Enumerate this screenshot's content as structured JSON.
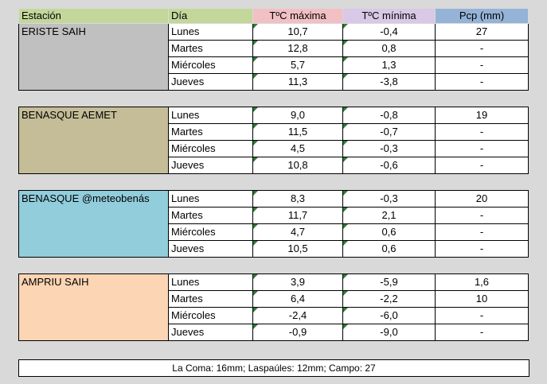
{
  "header": {
    "station": "Estación",
    "day": "Día",
    "tmax": "TºC máxima",
    "tmin": "TºC mínima",
    "pcp": "Pcp (mm)"
  },
  "colors": {
    "station_header": "#c4d79b",
    "day_header": "#c4d79b",
    "tmax_header": "#f2c0c4",
    "tmin_header": "#d9c8e6",
    "pcp_header": "#95b3d7",
    "triangle_marker": "#2e7d32"
  },
  "stations": [
    {
      "name": "ERISTE SAIH",
      "color": "#c0c0c0",
      "rows": [
        {
          "day": "Lunes",
          "tmax": "10,7",
          "tmin": "-0,4",
          "pcp": "27"
        },
        {
          "day": "Martes",
          "tmax": "12,8",
          "tmin": "0,8",
          "pcp": "-"
        },
        {
          "day": "Miércoles",
          "tmax": "5,7",
          "tmin": "1,3",
          "pcp": "-"
        },
        {
          "day": "Jueves",
          "tmax": "11,3",
          "tmin": "-3,8",
          "pcp": "-"
        }
      ]
    },
    {
      "name": "BENASQUE AEMET",
      "color": "#c4bd97",
      "rows": [
        {
          "day": "Lunes",
          "tmax": "9,0",
          "tmin": "-0,8",
          "pcp": "19"
        },
        {
          "day": "Martes",
          "tmax": "11,5",
          "tmin": "-0,7",
          "pcp": "-"
        },
        {
          "day": "Miércoles",
          "tmax": "4,5",
          "tmin": "-0,3",
          "pcp": "-"
        },
        {
          "day": "Jueves",
          "tmax": "10,8",
          "tmin": "-0,6",
          "pcp": "-"
        }
      ]
    },
    {
      "name": "BENASQUE @meteobenás",
      "color": "#92cddc",
      "rows": [
        {
          "day": "Lunes",
          "tmax": "8,3",
          "tmin": "-0,3",
          "pcp": "20"
        },
        {
          "day": "Martes",
          "tmax": "11,7",
          "tmin": "2,1",
          "pcp": "-"
        },
        {
          "day": "Miércoles",
          "tmax": "4,7",
          "tmin": "0,6",
          "pcp": "-"
        },
        {
          "day": "Jueves",
          "tmax": "10,5",
          "tmin": "0,6",
          "pcp": "-"
        }
      ]
    },
    {
      "name": "AMPRIU SAIH",
      "color": "#fcd5b4",
      "rows": [
        {
          "day": "Lunes",
          "tmax": "3,9",
          "tmin": "-5,9",
          "pcp": "1,6"
        },
        {
          "day": "Martes",
          "tmax": "6,4",
          "tmin": "-2,2",
          "pcp": "10"
        },
        {
          "day": "Miércoles",
          "tmax": "-2,4",
          "tmin": "-6,0",
          "pcp": "-"
        },
        {
          "day": "Jueves",
          "tmax": "-0,9",
          "tmin": "-9,0",
          "pcp": "-"
        }
      ]
    }
  ],
  "footer": "La Coma: 16mm; Laspaúles: 12mm; Campo: 27"
}
